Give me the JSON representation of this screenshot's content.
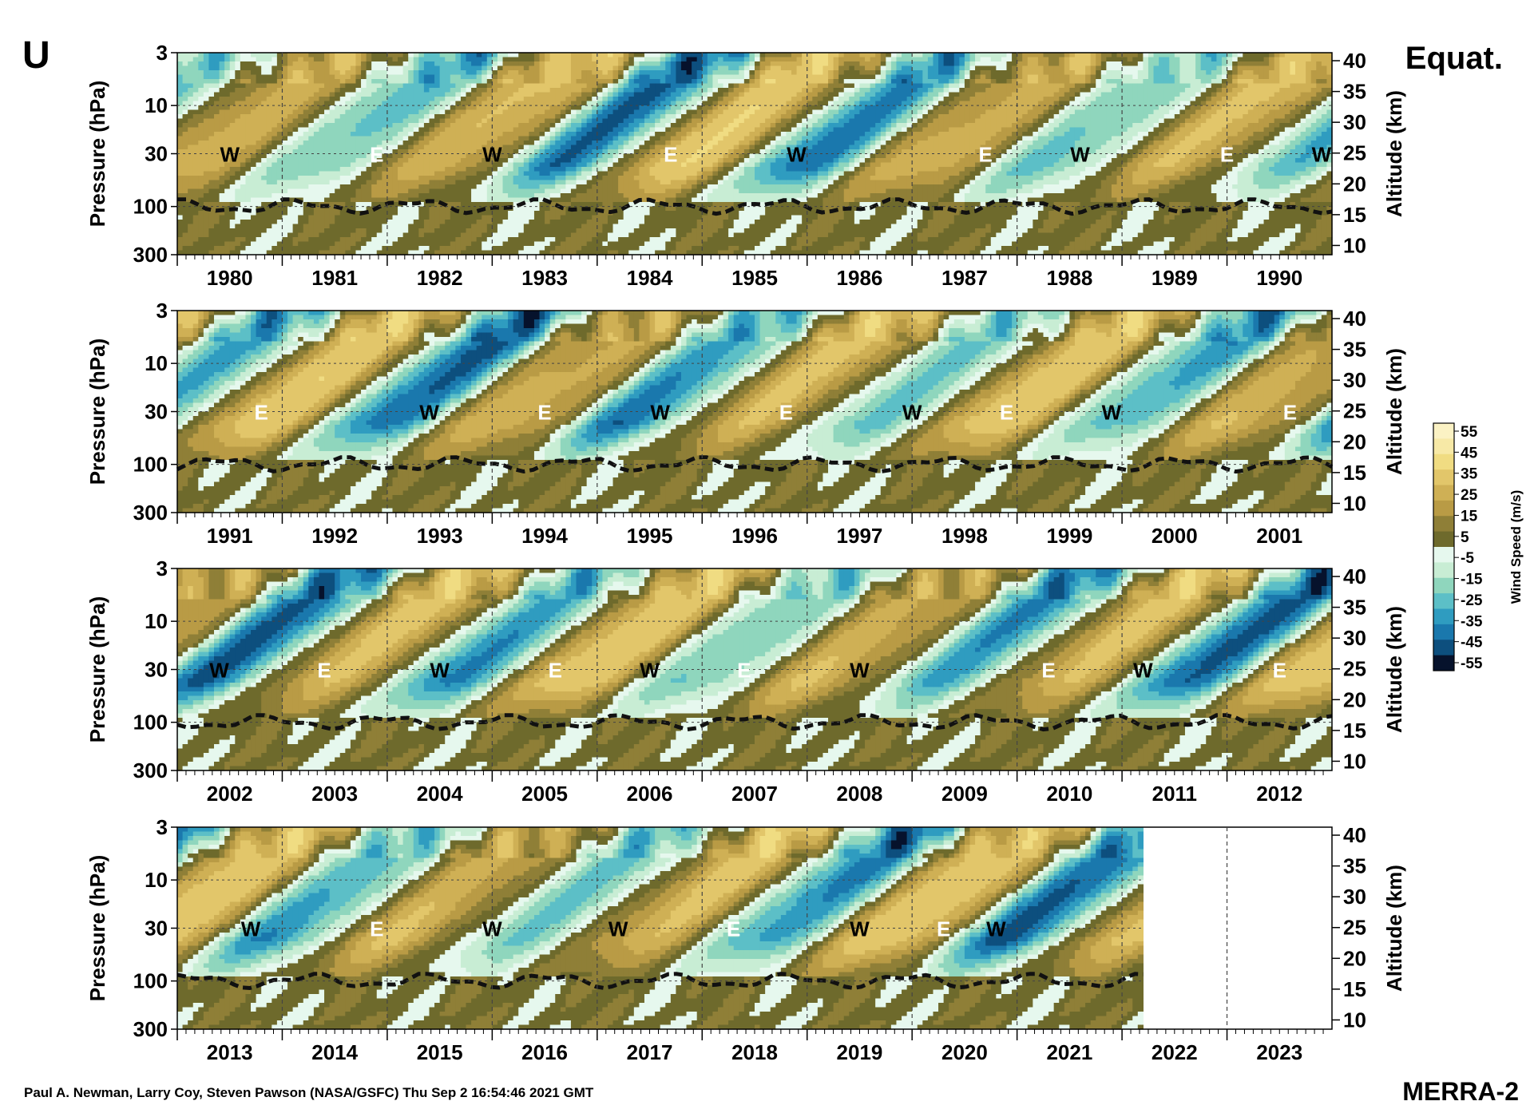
{
  "header": {
    "variable": "U",
    "region": "Equat."
  },
  "footer": {
    "credit": "Paul A. Newman, Larry Coy, Steven Pawson (NASA/GSFC) Thu Sep  2 16:54:46 2021 GMT",
    "dataset": "MERRA-2"
  },
  "colorbar": {
    "title": "Wind Speed (m/s)",
    "labels": [
      "55",
      "45",
      "35",
      "25",
      "15",
      "5",
      "-5",
      "-15",
      "-25",
      "-35",
      "-45",
      "-55"
    ],
    "levels": [
      60,
      50,
      40,
      30,
      20,
      10,
      0,
      -10,
      -20,
      -30,
      -40,
      -50,
      -60
    ],
    "colors": {
      "east_dark": "#06122c",
      "east_mid": "#1a78ad",
      "east_light": "#5cbfc7",
      "near_zero": "#e6f8ee",
      "west_low": "#6e6a2c",
      "west_mid": "#b99b45",
      "west_high": "#f0dc82",
      "west_max": "#fbf2c4"
    }
  },
  "chart_data": {
    "type": "heatmap",
    "title": "",
    "xlabel": "",
    "ylabel": "Pressure (hPa)",
    "y2label": "Altitude (km)",
    "pressure_ticks": [
      "3",
      "10",
      "30",
      "100",
      "300"
    ],
    "altitude_ticks": [
      "40",
      "35",
      "30",
      "25",
      "20",
      "15",
      "10"
    ],
    "panels": [
      {
        "years": [
          "1980",
          "1981",
          "1982",
          "1983",
          "1984",
          "1985",
          "1986",
          "1987",
          "1988",
          "1989",
          "1990"
        ],
        "start": 1979.5,
        "end": 1990.5,
        "phase_labels": [
          {
            "text": "W",
            "year": 1980.0
          },
          {
            "text": "E",
            "year": 1981.4
          },
          {
            "text": "W",
            "year": 1982.5
          },
          {
            "text": "E",
            "year": 1984.2
          },
          {
            "text": "W",
            "year": 1985.4
          },
          {
            "text": "E",
            "year": 1987.2
          },
          {
            "text": "W",
            "year": 1988.1
          },
          {
            "text": "E",
            "year": 1989.5
          },
          {
            "text": "W",
            "year": 1990.4
          }
        ]
      },
      {
        "years": [
          "1991",
          "1992",
          "1993",
          "1994",
          "1995",
          "1996",
          "1997",
          "1998",
          "1999",
          "2000",
          "2001"
        ],
        "start": 1990.5,
        "end": 2001.5,
        "phase_labels": [
          {
            "text": "E",
            "year": 1991.3
          },
          {
            "text": "W",
            "year": 1992.9
          },
          {
            "text": "E",
            "year": 1994.0
          },
          {
            "text": "W",
            "year": 1995.1
          },
          {
            "text": "E",
            "year": 1996.3
          },
          {
            "text": "W",
            "year": 1997.5
          },
          {
            "text": "E",
            "year": 1998.4
          },
          {
            "text": "W",
            "year": 1999.4
          },
          {
            "text": "E",
            "year": 2001.1
          }
        ]
      },
      {
        "years": [
          "2002",
          "2003",
          "2004",
          "2005",
          "2006",
          "2007",
          "2008",
          "2009",
          "2010",
          "2011",
          "2012"
        ],
        "start": 2001.5,
        "end": 2012.5,
        "phase_labels": [
          {
            "text": "W",
            "year": 2001.9
          },
          {
            "text": "E",
            "year": 2002.9
          },
          {
            "text": "W",
            "year": 2004.0
          },
          {
            "text": "E",
            "year": 2005.1
          },
          {
            "text": "W",
            "year": 2006.0
          },
          {
            "text": "E",
            "year": 2006.9
          },
          {
            "text": "W",
            "year": 2008.0
          },
          {
            "text": "E",
            "year": 2009.8
          },
          {
            "text": "W",
            "year": 2010.7
          },
          {
            "text": "E",
            "year": 2012.0
          }
        ]
      },
      {
        "years": [
          "2013",
          "2014",
          "2015",
          "2016",
          "2017",
          "2018",
          "2019",
          "2020",
          "2021",
          "2022",
          "2023"
        ],
        "start": 2012.5,
        "end": 2023.5,
        "data_end": 2021.7,
        "phase_labels": [
          {
            "text": "W",
            "year": 2013.2
          },
          {
            "text": "E",
            "year": 2014.4
          },
          {
            "text": "W",
            "year": 2015.5
          },
          {
            "text": "W",
            "year": 2016.7
          },
          {
            "text": "E",
            "year": 2017.8
          },
          {
            "text": "W",
            "year": 2019.0
          },
          {
            "text": "E",
            "year": 2019.8
          },
          {
            "text": "W",
            "year": 2020.3
          }
        ]
      }
    ],
    "qbo": {
      "period_years": 2.33,
      "westerly_max_ms": 25,
      "easterly_max_ms": -45,
      "contour_levels_ms": [
        -20,
        20
      ],
      "tropopause_hPa": 100
    },
    "grid": true
  }
}
